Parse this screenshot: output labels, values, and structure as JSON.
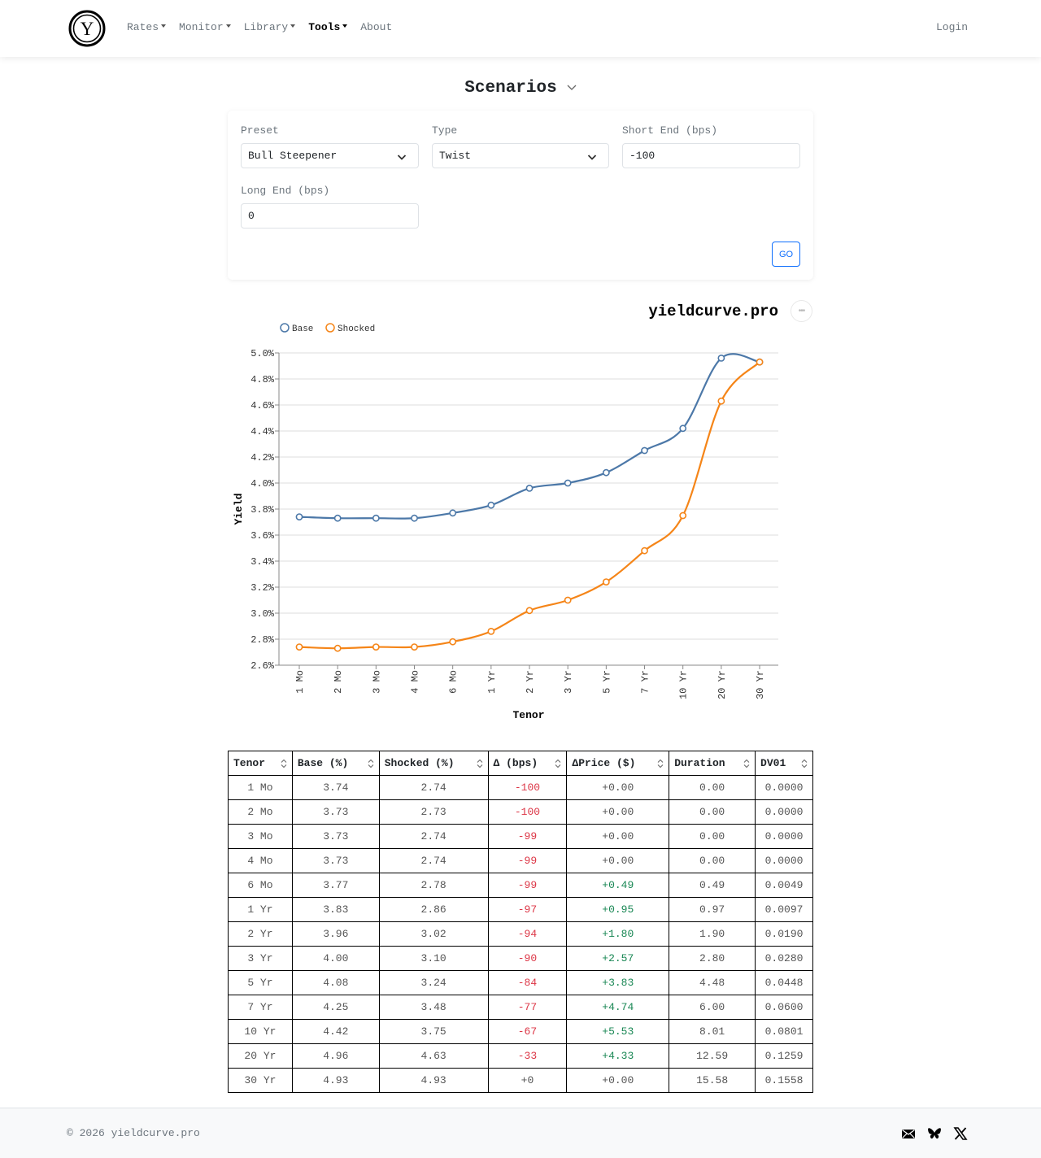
{
  "navbar": {
    "logo_letter": "Y",
    "items": [
      {
        "label": "Rates",
        "dropdown": true,
        "active": false
      },
      {
        "label": "Monitor",
        "dropdown": true,
        "active": false
      },
      {
        "label": "Library",
        "dropdown": true,
        "active": false
      },
      {
        "label": "Tools",
        "dropdown": true,
        "active": true
      },
      {
        "label": "About",
        "dropdown": false,
        "active": false
      }
    ],
    "login_label": "Login"
  },
  "page": {
    "title": "Scenarios"
  },
  "form": {
    "preset": {
      "label": "Preset",
      "value": "Bull Steepener"
    },
    "type": {
      "label": "Type",
      "value": "Twist"
    },
    "short_end": {
      "label": "Short End (bps)",
      "value": "-100"
    },
    "long_end": {
      "label": "Long End (bps)",
      "value": "0"
    },
    "go_label": "GO"
  },
  "chart": {
    "brand": "yieldcurve.pro",
    "menu_icon": "ellipsis-icon",
    "legend": [
      {
        "label": "Base",
        "color": "#4c78a8"
      },
      {
        "label": "Shocked",
        "color": "#f58518"
      }
    ]
  },
  "chart_data": {
    "type": "line",
    "title": "",
    "xlabel": "Tenor",
    "ylabel": "Yield",
    "categories": [
      "1 Mo",
      "2 Mo",
      "3 Mo",
      "4 Mo",
      "6 Mo",
      "1 Yr",
      "2 Yr",
      "3 Yr",
      "5 Yr",
      "7 Yr",
      "10 Yr",
      "20 Yr",
      "30 Yr"
    ],
    "series": [
      {
        "name": "Base",
        "color": "#4c78a8",
        "values": [
          3.74,
          3.73,
          3.73,
          3.73,
          3.77,
          3.83,
          3.96,
          4.0,
          4.08,
          4.25,
          4.42,
          4.96,
          4.93
        ]
      },
      {
        "name": "Shocked",
        "color": "#f58518",
        "values": [
          2.74,
          2.73,
          2.74,
          2.74,
          2.78,
          2.86,
          3.02,
          3.1,
          3.24,
          3.48,
          3.75,
          4.63,
          4.93
        ]
      }
    ],
    "ylim": [
      2.6,
      5.0
    ],
    "yticks": [
      "2.6%",
      "2.8%",
      "3.0%",
      "3.2%",
      "3.4%",
      "3.6%",
      "3.8%",
      "4.0%",
      "4.2%",
      "4.4%",
      "4.6%",
      "4.8%",
      "5.0%"
    ],
    "grid": true,
    "legend_position": "top-left"
  },
  "table": {
    "columns": [
      "Tenor",
      "Base (%)",
      "Shocked (%)",
      "Δ (bps)",
      "ΔPrice ($)",
      "Duration",
      "DV01"
    ],
    "rows": [
      [
        "1 Mo",
        "3.74",
        "2.74",
        "-100",
        "+0.00",
        "0.00",
        "0.0000"
      ],
      [
        "2 Mo",
        "3.73",
        "2.73",
        "-100",
        "+0.00",
        "0.00",
        "0.0000"
      ],
      [
        "3 Mo",
        "3.73",
        "2.74",
        "-99",
        "+0.00",
        "0.00",
        "0.0000"
      ],
      [
        "4 Mo",
        "3.73",
        "2.74",
        "-99",
        "+0.00",
        "0.00",
        "0.0000"
      ],
      [
        "6 Mo",
        "3.77",
        "2.78",
        "-99",
        "+0.49",
        "0.49",
        "0.0049"
      ],
      [
        "1 Yr",
        "3.83",
        "2.86",
        "-97",
        "+0.95",
        "0.97",
        "0.0097"
      ],
      [
        "2 Yr",
        "3.96",
        "3.02",
        "-94",
        "+1.80",
        "1.90",
        "0.0190"
      ],
      [
        "3 Yr",
        "4.00",
        "3.10",
        "-90",
        "+2.57",
        "2.80",
        "0.0280"
      ],
      [
        "5 Yr",
        "4.08",
        "3.24",
        "-84",
        "+3.83",
        "4.48",
        "0.0448"
      ],
      [
        "7 Yr",
        "4.25",
        "3.48",
        "-77",
        "+4.74",
        "6.00",
        "0.0600"
      ],
      [
        "10 Yr",
        "4.42",
        "3.75",
        "-67",
        "+5.53",
        "8.01",
        "0.0801"
      ],
      [
        "20 Yr",
        "4.96",
        "4.63",
        "-33",
        "+4.33",
        "12.59",
        "0.1259"
      ],
      [
        "30 Yr",
        "4.93",
        "4.93",
        "+0",
        "+0.00",
        "15.58",
        "0.1558"
      ]
    ],
    "colors": {
      "negative": "#dc3545",
      "positive": "#198754",
      "neutral": "#555555"
    }
  },
  "footer": {
    "copyright": "© 2026 yieldcurve.pro",
    "social_icons": [
      "mail-icon",
      "bluesky-icon",
      "x-icon"
    ]
  }
}
